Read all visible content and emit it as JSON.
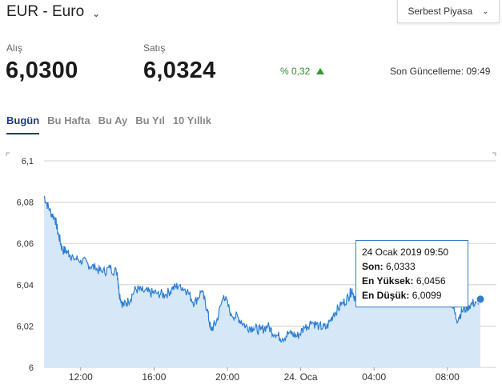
{
  "header": {
    "title": "EUR - Euro",
    "market_select": "Serbest Piyasa"
  },
  "quote": {
    "buy_label": "Alış",
    "buy_value": "6,0300",
    "sell_label": "Satış",
    "sell_value": "6,0324",
    "change": "% 0,32",
    "updated": "Son Güncelleme: 09:49"
  },
  "tabs": [
    "Bugün",
    "Bu Hafta",
    "Bu Ay",
    "Bu Yıl",
    "10 Yıllık"
  ],
  "tooltip": {
    "date": "24 Ocak 2019 09:50",
    "last_label": "Son:",
    "last_value": "6,0333",
    "high_label": "En Yüksek:",
    "high_value": "6,0456",
    "low_label": "En Düşük:",
    "low_value": "6,0099"
  },
  "colors": {
    "line": "#2d7dd2",
    "area": "#d6e8f7",
    "positive": "#2f9a2f",
    "active_tab": "#1f3a78"
  },
  "chart_data": {
    "type": "area",
    "ylim": [
      6.0,
      6.1
    ],
    "y_ticks": [
      "6",
      "6,02",
      "6,04",
      "6,06",
      "6,08",
      "6,1"
    ],
    "x_ticks": [
      "12:00",
      "16:00",
      "20:00",
      "24. Oca",
      "04:00",
      "08:00"
    ],
    "x_tick_hours": [
      12,
      16,
      20,
      24,
      28,
      32
    ],
    "x_range_hours": [
      10.0,
      33.8
    ],
    "series": [
      {
        "x": [
          10.0,
          10.3,
          10.6,
          10.8,
          11.0,
          11.3,
          11.6,
          12.0,
          12.4,
          12.8,
          13.2,
          13.6,
          14.0,
          14.1,
          14.3,
          14.6,
          15.0,
          15.4,
          15.8,
          16.2,
          16.6,
          17.0,
          17.4,
          17.8,
          18.2,
          18.6,
          18.9,
          19.1,
          19.4,
          19.8,
          20.2,
          20.6,
          21.0,
          21.4,
          21.8,
          22.2,
          22.6,
          23.0,
          23.4,
          23.8,
          24.2,
          24.6,
          25.0,
          25.4,
          25.8,
          26.2,
          26.6,
          26.8,
          27.0,
          27.4,
          27.8,
          28.2,
          28.6,
          29.0,
          29.4,
          29.8,
          30.2,
          30.6,
          31.0,
          31.4,
          31.8,
          32.2,
          32.5,
          32.8,
          33.2,
          33.6,
          33.8
        ],
        "y": [
          6.083,
          6.076,
          6.072,
          6.064,
          6.057,
          6.056,
          6.053,
          6.052,
          6.05,
          6.048,
          6.046,
          6.048,
          6.046,
          6.036,
          6.03,
          6.032,
          6.038,
          6.037,
          6.036,
          6.036,
          6.035,
          6.038,
          6.04,
          6.037,
          6.031,
          6.037,
          6.028,
          6.018,
          6.022,
          6.035,
          6.026,
          6.024,
          6.02,
          6.019,
          6.018,
          6.02,
          6.016,
          6.014,
          6.017,
          6.015,
          6.019,
          6.022,
          6.02,
          6.019,
          6.026,
          6.03,
          6.034,
          6.038,
          6.032,
          6.036,
          6.039,
          6.04,
          6.037,
          6.039,
          6.041,
          6.042,
          6.04,
          6.039,
          6.038,
          6.04,
          6.037,
          6.033,
          6.023,
          6.027,
          6.03,
          6.032,
          6.033
        ]
      }
    ]
  }
}
